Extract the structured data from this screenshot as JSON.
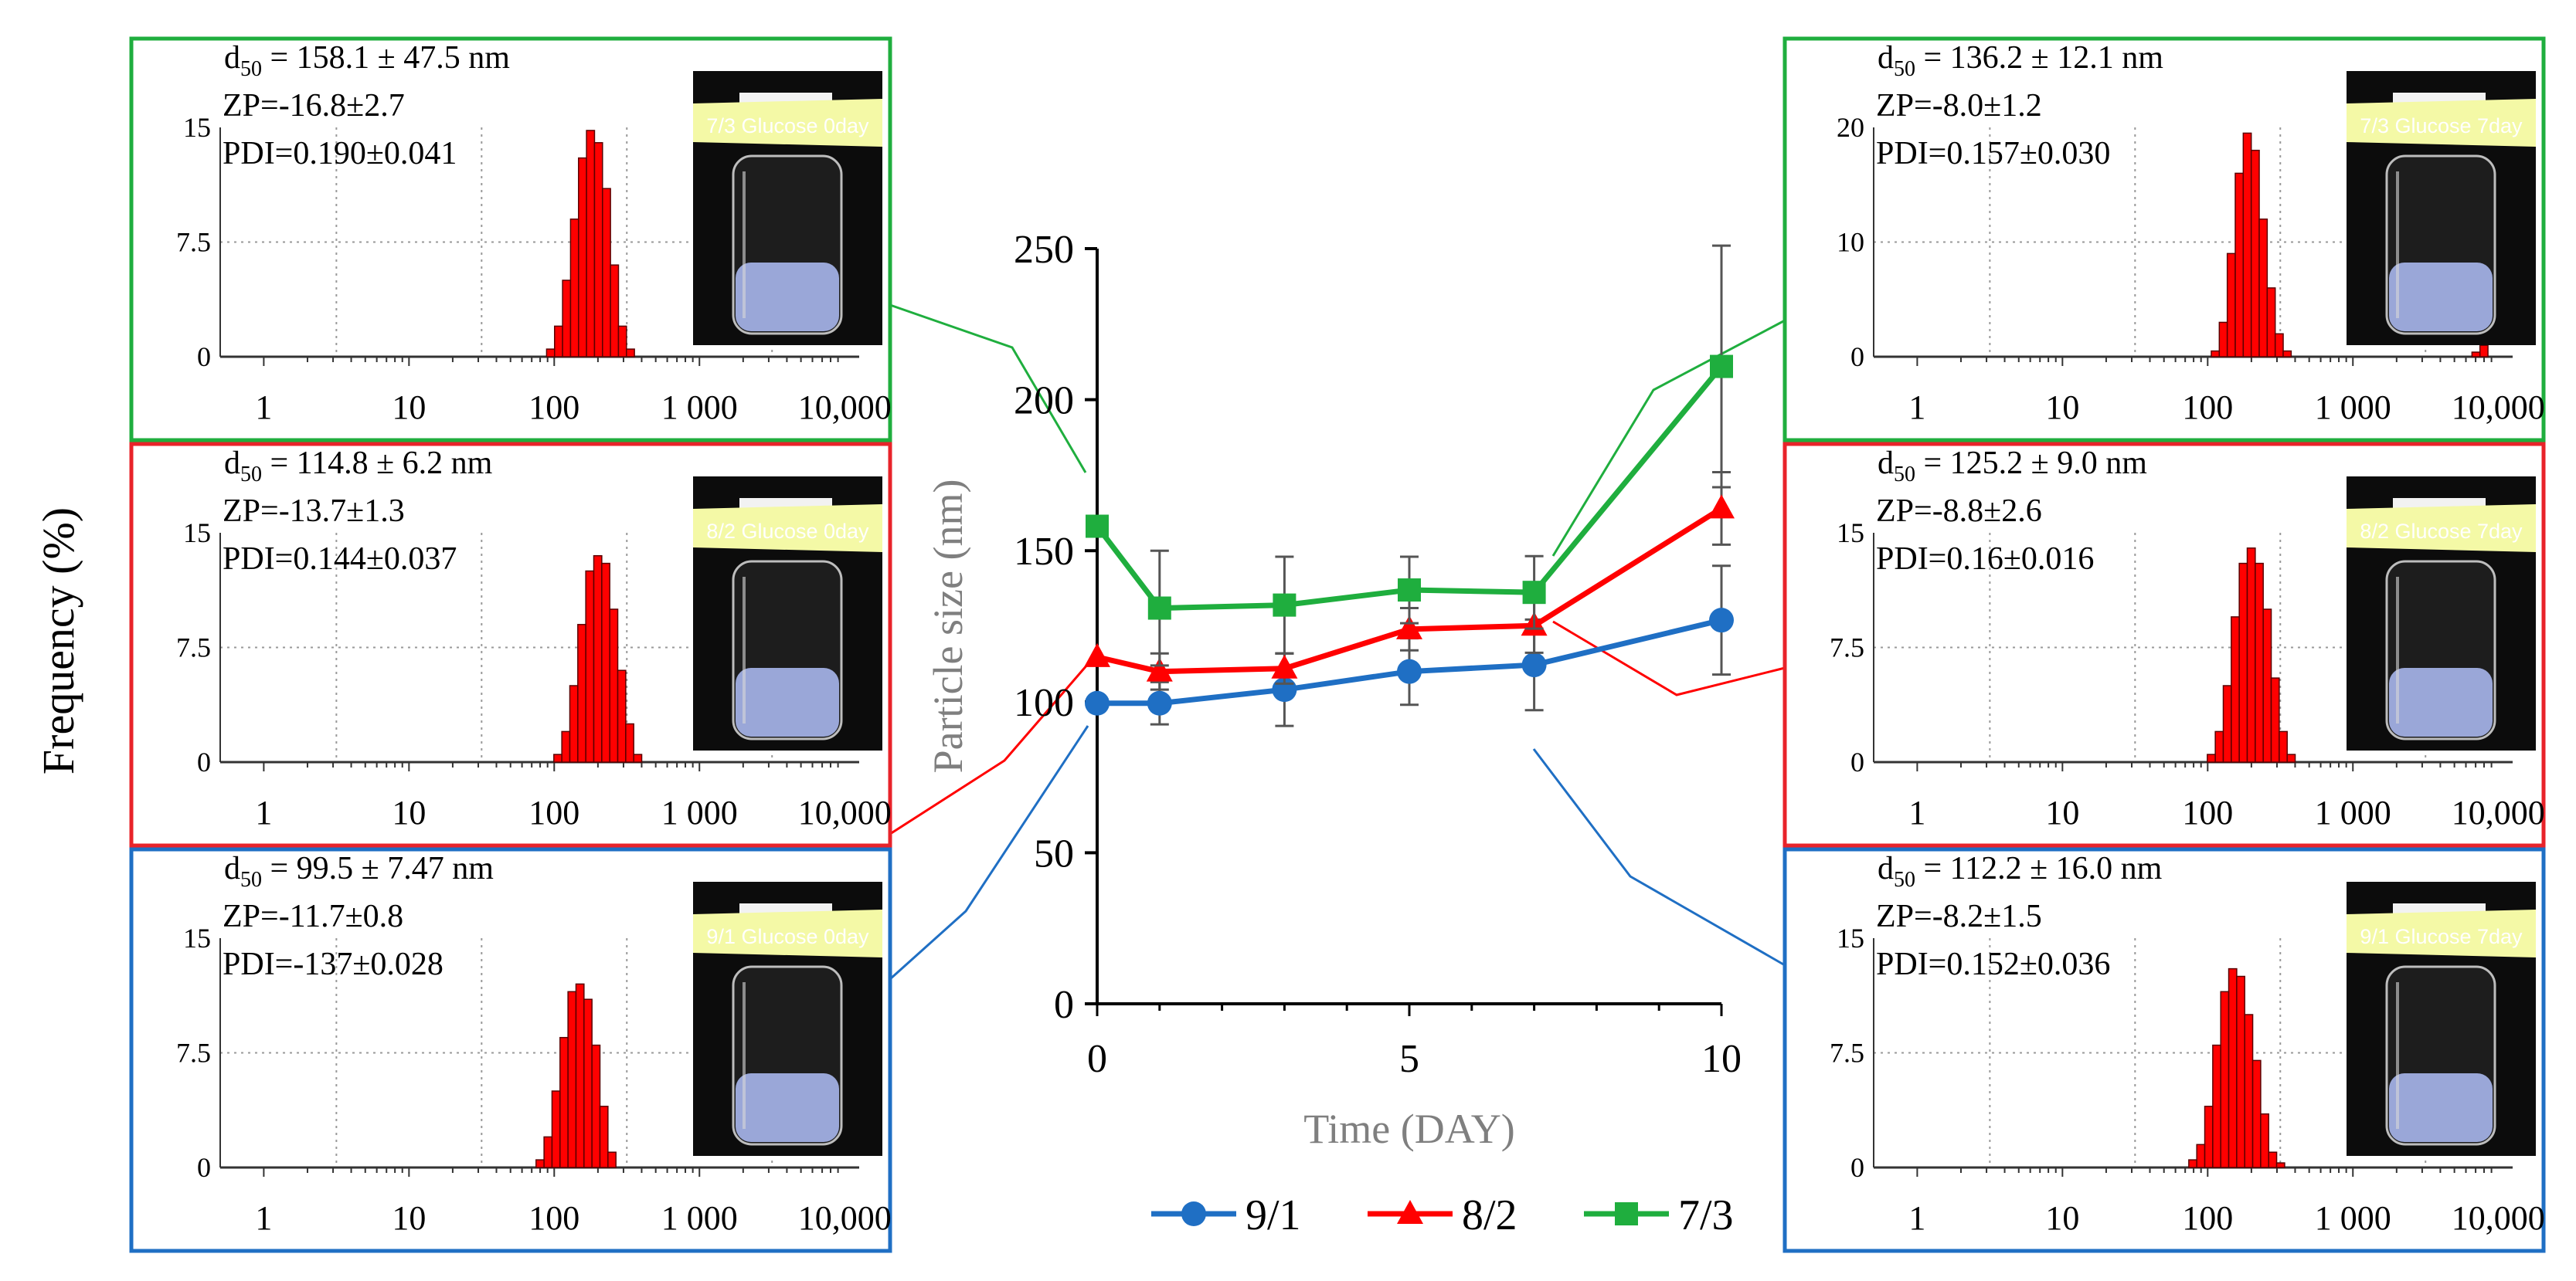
{
  "colors": {
    "s91": "#1f6fc4",
    "s82": "#ff0000",
    "s73": "#1fae3e",
    "bar": "#ff0000",
    "bar_edge": "#5a0000",
    "frame_green": "#1fae3e",
    "frame_red": "#e8232a",
    "frame_blue": "#1f6fc4",
    "label_tape": "#f4f9a6"
  },
  "y_axis_left_label": "Frequency (%)",
  "chart_data": {
    "type": "line",
    "xlabel": "Time (DAY)",
    "ylabel": "Particle size (nm)",
    "xlim": [
      0,
      10
    ],
    "ylim": [
      0,
      250
    ],
    "x_ticks": [
      0,
      5,
      10
    ],
    "y_ticks": [
      0,
      50,
      100,
      150,
      200,
      250
    ],
    "series": [
      {
        "name": "9/1",
        "marker": "circle",
        "x": [
          0,
          1,
          3,
          5,
          7,
          10
        ],
        "values": [
          99.5,
          99.5,
          104,
          110,
          112.2,
          127
        ],
        "errors": [
          0,
          7,
          12,
          11,
          15,
          18
        ]
      },
      {
        "name": "8/2",
        "marker": "triangle",
        "x": [
          0,
          1,
          3,
          5,
          7,
          10
        ],
        "values": [
          114.8,
          110,
          111,
          124,
          125.2,
          164
        ],
        "errors": [
          0,
          6,
          5,
          7,
          9,
          12
        ]
      },
      {
        "name": "7/3",
        "marker": "square",
        "x": [
          0,
          1,
          3,
          5,
          7,
          10
        ],
        "values": [
          158.1,
          131,
          132,
          137,
          136.2,
          211
        ],
        "errors": [
          0,
          19,
          16,
          11,
          12,
          40
        ]
      }
    ],
    "insets": [
      {
        "id": "7-3-0day",
        "side": "left",
        "frame": "green",
        "d50": "158.1",
        "d50_err": "47.5",
        "zp": "ZP=-16.8±2.7",
        "pdi": "PDI=0.190±0.041",
        "photo_label": "7/3 Glucose 0day",
        "ymax": 15,
        "y_ticks": [
          "15",
          "7.5",
          "0"
        ],
        "x_ticks": [
          "1",
          "10",
          "100",
          "1 000",
          "10,000"
        ],
        "bars": [
          0.5,
          2,
          5,
          9,
          13,
          14.8,
          14,
          11,
          6,
          2,
          0.5
        ],
        "peak_log": 2.25,
        "minor_bars": []
      },
      {
        "id": "8-2-0day",
        "side": "left",
        "frame": "red",
        "d50": "114.8",
        "d50_err": "6.2",
        "zp": "ZP=-13.7±1.3",
        "pdi": "PDI=0.144±0.037",
        "photo_label": "8/2 Glucose 0day",
        "ymax": 15,
        "y_ticks": [
          "15",
          "7.5",
          "0"
        ],
        "x_ticks": [
          "1",
          "10",
          "100",
          "1 000",
          "10,000"
        ],
        "bars": [
          0.5,
          2,
          5,
          9,
          12.5,
          13.5,
          13,
          10,
          6,
          2.5,
          0.5
        ],
        "peak_log": 2.3,
        "minor_bars": []
      },
      {
        "id": "9-1-0day",
        "side": "left",
        "frame": "blue",
        "d50": "99.5",
        "d50_err": "7.47",
        "zp": "ZP=-11.7±0.8",
        "pdi": "PDI=-137±0.028",
        "photo_label": "9/1 Glucose 0day",
        "ymax": 15,
        "y_ticks": [
          "15",
          "7.5",
          "0"
        ],
        "x_ticks": [
          "1",
          "10",
          "100",
          "1 000",
          "10,000"
        ],
        "bars": [
          0.5,
          2,
          5,
          8.5,
          11.5,
          12,
          11,
          8,
          4,
          1
        ],
        "peak_log": 2.15,
        "minor_bars": []
      },
      {
        "id": "7-3-7day",
        "side": "right",
        "frame": "green",
        "d50": "136.2",
        "d50_err": "12.1",
        "zp": "ZP=-8.0±1.2",
        "pdi": "PDI=0.157±0.030",
        "photo_label": "7/3 Glucose 7day",
        "ymax": 20,
        "y_ticks": [
          "20",
          "10",
          "0"
        ],
        "x_ticks": [
          "1",
          "10",
          "100",
          "1 000",
          "10,000"
        ],
        "bars": [
          0.5,
          3,
          9,
          16,
          19.5,
          18,
          12,
          6,
          2,
          0.5
        ],
        "peak_log": 2.3,
        "minor_bars": [
          0.4,
          1
        ]
      },
      {
        "id": "8-2-7day",
        "side": "right",
        "frame": "red",
        "d50": "125.2",
        "d50_err": "9.0",
        "zp": "ZP=-8.8±2.6",
        "pdi": "PDI=0.16±0.016",
        "photo_label": "8/2 Glucose 7day",
        "ymax": 15,
        "y_ticks": [
          "15",
          "7.5",
          "0"
        ],
        "x_ticks": [
          "1",
          "10",
          "100",
          "1 000",
          "10,000"
        ],
        "bars": [
          0.5,
          2,
          5,
          9.5,
          13,
          14,
          13,
          10,
          5.5,
          2,
          0.5
        ],
        "peak_log": 2.3,
        "minor_bars": []
      },
      {
        "id": "9-1-7day",
        "side": "right",
        "frame": "blue",
        "d50": "112.2",
        "d50_err": "16.0",
        "zp": "ZP=-8.2±1.5",
        "pdi": "PDI=0.152±0.036",
        "photo_label": "9/1 Glucose 7day",
        "ymax": 15,
        "y_ticks": [
          "15",
          "7.5",
          "0"
        ],
        "x_ticks": [
          "1",
          "10",
          "100",
          "1 000",
          "10,000"
        ],
        "bars": [
          0.5,
          1.5,
          4,
          8,
          11.5,
          13,
          12.5,
          10,
          7,
          3.5,
          1,
          0.3
        ],
        "peak_log": 2.2,
        "minor_bars": []
      }
    ]
  }
}
